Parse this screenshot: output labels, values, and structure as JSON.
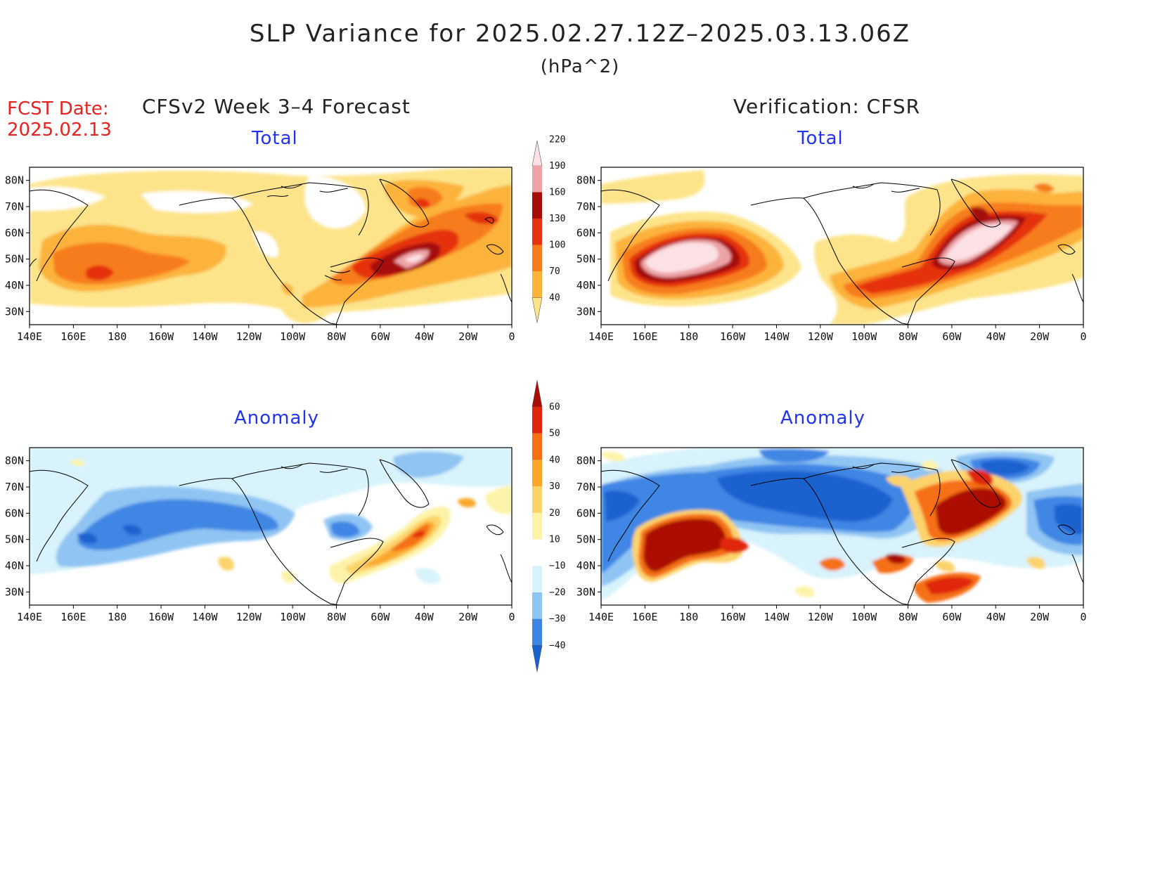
{
  "title": "SLP Variance for 2025.02.27.12Z–2025.03.13.06Z",
  "units": "(hPa^2)",
  "fcst_label": "FCST Date:",
  "fcst_date": "2025.02.13",
  "left_heading": "CFSv2 Week 3–4 Forecast",
  "right_heading": "Verification: CFSR",
  "panel_titles": {
    "forecast_total": "Total",
    "verification_total": "Total",
    "forecast_anomaly": "Anomaly",
    "verification_anomaly": "Anomaly"
  },
  "lat_ticks": [
    "80N",
    "70N",
    "60N",
    "50N",
    "40N",
    "30N"
  ],
  "lon_ticks": [
    "140E",
    "160E",
    "180",
    "160W",
    "140W",
    "120W",
    "100W",
    "80W",
    "60W",
    "40W",
    "20W",
    "0"
  ],
  "total_colorbar": {
    "levels": [
      "40",
      "70",
      "100",
      "130",
      "160",
      "190",
      "220"
    ],
    "colors": [
      "#fde48a",
      "#fcb33a",
      "#f77d1c",
      "#e5320f",
      "#a60c08",
      "#eda3a6",
      "#fbe1e4"
    ]
  },
  "anomaly_colorbar": {
    "levels": [
      "−40",
      "−30",
      "−20",
      "−10",
      "10",
      "20",
      "30",
      "40",
      "50",
      "60"
    ],
    "colors": [
      "#1a62cf",
      "#3f86e4",
      "#8fc4f3",
      "#d8f3fb",
      "#ffffff",
      "#fdf3a8",
      "#fcd36b",
      "#fba72a",
      "#f56f16",
      "#e0260d",
      "#ab0d06"
    ]
  },
  "colors": {
    "title_red": "#e8231f",
    "panel_title_blue": "#2233ee"
  }
}
